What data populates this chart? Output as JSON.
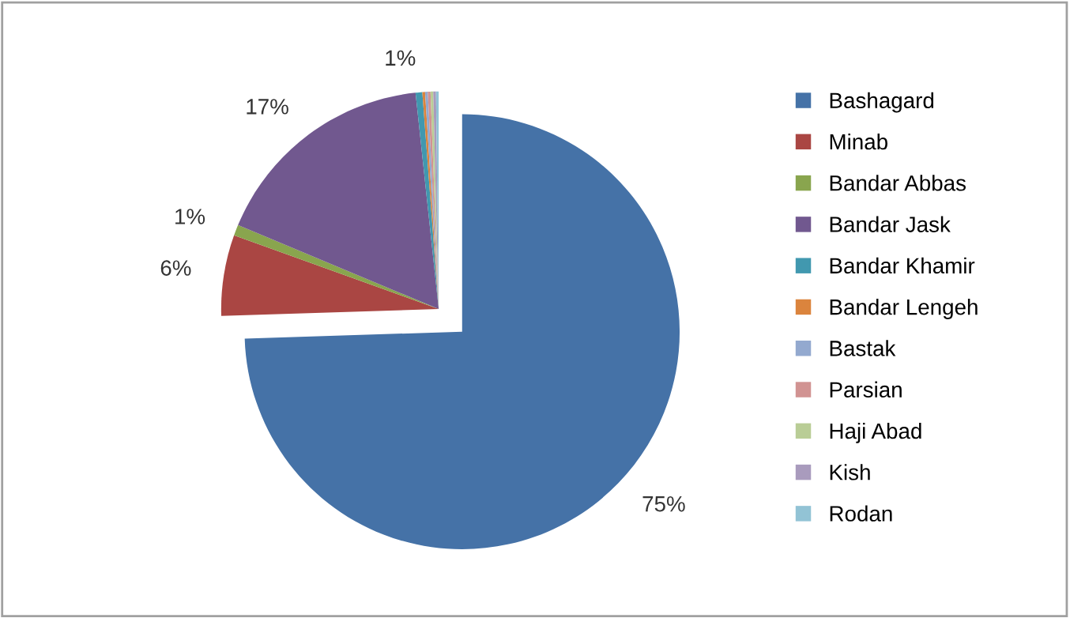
{
  "chart_data": {
    "type": "pie",
    "categories": [
      "Bashagard",
      "Minab",
      "Bandar Abbas",
      "Bandar Jask",
      "Bandar Khamir",
      "Bandar Lengeh",
      "Bastak",
      "Parsian",
      "Haji Abad",
      "Kish",
      "Rodan"
    ],
    "values": [
      74.5,
      6.0,
      0.8,
      17.0,
      0.5,
      0.2,
      0.2,
      0.2,
      0.2,
      0.2,
      0.2
    ],
    "value_labels": [
      "75%",
      "6%",
      "1%",
      "17%",
      "1%",
      null,
      null,
      null,
      null,
      null,
      null
    ],
    "colors": [
      "#4572a7",
      "#aa4643",
      "#89a54e",
      "#71588f",
      "#4198af",
      "#db843d",
      "#93a9cf",
      "#d19392",
      "#b9cd96",
      "#a99bbd",
      "#92c3d5"
    ],
    "legend": "right"
  }
}
